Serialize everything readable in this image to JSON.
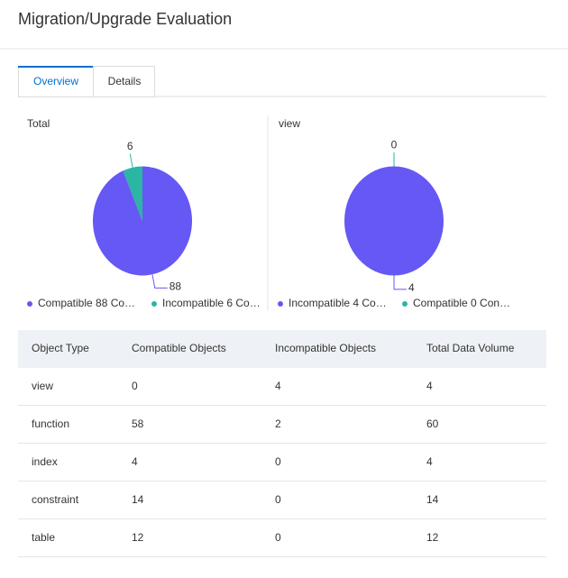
{
  "header": {
    "title": "Migration/Upgrade Evaluation"
  },
  "tabs": [
    "Overview",
    "Details"
  ],
  "chart_data": [
    {
      "type": "pie",
      "title": "Total",
      "categories": [
        "Compatible",
        "Incompatible"
      ],
      "values": [
        88,
        6
      ],
      "colors": [
        "#6658f4",
        "#2bb5a4"
      ],
      "legend_labels": [
        "Compatible 88 Co…",
        "Incompatible 6 Co…"
      ]
    },
    {
      "type": "pie",
      "title": "view",
      "categories": [
        "Incompatible",
        "Compatible"
      ],
      "values": [
        4,
        0
      ],
      "colors": [
        "#6658f4",
        "#2bb5a4"
      ],
      "legend_labels": [
        "Incompatible 4 Co…",
        "Compatible 0 Con…"
      ]
    }
  ],
  "table": {
    "columns": [
      "Object Type",
      "Compatible Objects",
      "Incompatible Objects",
      "Total Data Volume"
    ],
    "rows": [
      [
        "view",
        0,
        4,
        4
      ],
      [
        "function",
        58,
        2,
        60
      ],
      [
        "index",
        4,
        0,
        4
      ],
      [
        "constraint",
        14,
        0,
        14
      ],
      [
        "table",
        12,
        0,
        12
      ]
    ]
  }
}
